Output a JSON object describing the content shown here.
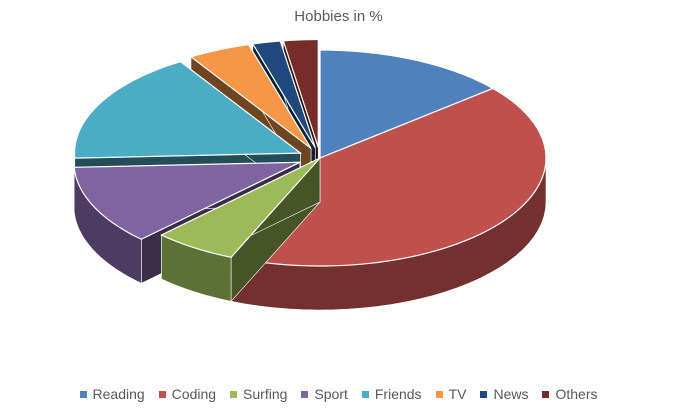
{
  "chart_data": {
    "type": "pie",
    "title": "Hobbies in %",
    "legend_position": "bottom",
    "categories": [
      "Reading",
      "Coding",
      "Surfing",
      "Sport",
      "Friends",
      "TV",
      "News",
      "Others"
    ],
    "values": [
      14,
      43,
      6,
      12,
      17,
      4.5,
      2,
      2.5
    ],
    "colors": [
      "#4F81BD",
      "#C0504D",
      "#9BBB59",
      "#8064A2",
      "#4BACC6",
      "#F79646",
      "#1F497D",
      "#772C2A"
    ],
    "exploded": [
      false,
      false,
      false,
      true,
      true,
      true,
      true,
      true
    ]
  }
}
